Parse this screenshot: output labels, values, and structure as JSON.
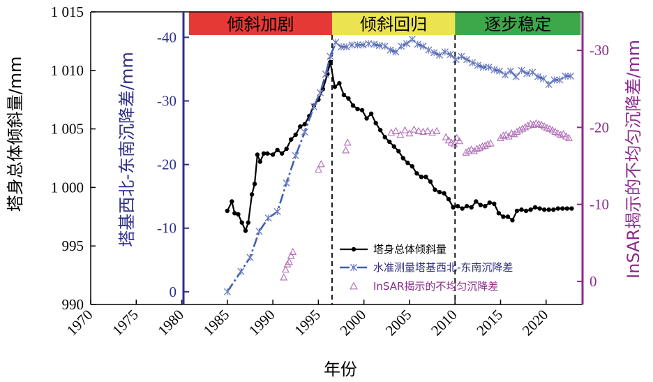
{
  "chart_data": {
    "type": "line",
    "xlabel": "年份",
    "x_ticks": [
      1970,
      1975,
      1980,
      1985,
      1990,
      1995,
      2000,
      2005,
      2010,
      2015,
      2020
    ],
    "xlim": [
      1970,
      2024
    ],
    "axes": {
      "left_outer": {
        "label": "塔身总体倾斜量/mm",
        "ylim": [
          990,
          1015
        ],
        "ticks": [
          990,
          995,
          1000,
          1005,
          1010,
          1015
        ],
        "tick_labels": [
          "990",
          "995",
          "1 000",
          "1 005",
          "1 010",
          "1 015"
        ],
        "color": "#000000"
      },
      "left_inner": {
        "label": "塔基西北-东南沉降差/mm",
        "ylim": [
          2,
          -44
        ],
        "inverted": true,
        "ticks": [
          0,
          -10,
          -20,
          -30,
          -40
        ],
        "tick_labels": [
          "0",
          "-10",
          "-20",
          "-30",
          "-40"
        ],
        "color": "#2e2e8a"
      },
      "right": {
        "label": "InSAR揭示的不均匀沉降差/mm",
        "ylim": [
          3,
          -35
        ],
        "inverted": true,
        "ticks": [
          0,
          -10,
          -20,
          -30
        ],
        "tick_labels": [
          "0",
          "-10",
          "-20",
          "-30"
        ],
        "color": "#8b2a8b"
      }
    },
    "phases": [
      {
        "label": "倾斜加剧",
        "start": 1980.8,
        "end": 1996.5,
        "color": "#e53935"
      },
      {
        "label": "倾斜回归",
        "start": 1996.5,
        "end": 2010,
        "color": "#ece350"
      },
      {
        "label": "逐步稳定",
        "start": 2010,
        "end": 2023.8,
        "color": "#3da84a"
      }
    ],
    "vlines": [
      1996.5,
      2010
    ],
    "series": [
      {
        "name": "塔身总体倾斜量",
        "axis": "left_outer",
        "style": "line-dots",
        "color": "#000000",
        "x": [
          1985.0,
          1985.5,
          1985.8,
          1986.2,
          1986.6,
          1987.0,
          1987.3,
          1987.7,
          1988.0,
          1988.3,
          1988.6,
          1989.0,
          1989.4,
          1990.0,
          1990.5,
          1991.0,
          1991.5,
          1992.0,
          1992.5,
          1993.0,
          1993.5,
          1994.0,
          1994.5,
          1995.0,
          1995.5,
          1996.0,
          1996.3,
          1996.8,
          1997.3,
          1997.8,
          1998.3,
          1998.8,
          1999.3,
          1999.8,
          2000.3,
          2000.8,
          2001.3,
          2001.8,
          2002.3,
          2002.8,
          2003.3,
          2003.8,
          2004.3,
          2004.8,
          2005.3,
          2005.8,
          2006.3,
          2006.8,
          2007.3,
          2007.8,
          2008.3,
          2008.8,
          2009.3,
          2009.8,
          2010.3,
          2010.8,
          2011.3,
          2011.8,
          2012.3,
          2012.8,
          2013.3,
          2013.8,
          2014.3,
          2014.8,
          2015.3,
          2015.8,
          2016.3,
          2016.8,
          2017.3,
          2017.8,
          2018.3,
          2018.8,
          2019.3,
          2019.8,
          2020.3,
          2020.8,
          2021.3,
          2021.8,
          2022.3,
          2022.8
        ],
        "values": [
          998.0,
          998.8,
          997.8,
          997.7,
          997.0,
          996.3,
          997.0,
          999.4,
          1000.3,
          1002.8,
          1002.2,
          1002.9,
          1002.9,
          1002.8,
          1003.2,
          1002.9,
          1003.3,
          1004.1,
          1004.5,
          1005.2,
          1005.4,
          1006.1,
          1007.0,
          1007.5,
          1008.4,
          1009.7,
          1010.7,
          1008.6,
          1008.9,
          1007.9,
          1007.6,
          1007.0,
          1006.7,
          1006.6,
          1005.9,
          1006.3,
          1005.5,
          1004.9,
          1004.3,
          1003.9,
          1003.5,
          1003.1,
          1002.5,
          1002.1,
          1001.8,
          1001.2,
          1000.9,
          1000.9,
          1000.5,
          999.8,
          999.6,
          999.5,
          999.0,
          998.3,
          998.4,
          998.2,
          998.4,
          998.3,
          998.8,
          998.5,
          998.4,
          998.7,
          998.6,
          997.8,
          997.5,
          997.5,
          997.2,
          998.0,
          998.1,
          998.0,
          998.1,
          998.3,
          998.2,
          998.1,
          998.1,
          998.1,
          998.2,
          998.2,
          998.2,
          998.2
        ]
      },
      {
        "name": "水准测量塔基西北-东南沉降差",
        "axis": "left_inner",
        "style": "dashdot-x",
        "color": "#6f7fc2",
        "x": [
          1985,
          1986.5,
          1987.5,
          1988.5,
          1989.5,
          1990.5,
          1991.5,
          1992.5,
          1993.5,
          1994.5,
          1995.2,
          1995.8,
          1996.3,
          1996.9,
          1997.5,
          1998.1,
          1998.7,
          1999.3,
          1999.9,
          2000.5,
          2001.1,
          2001.7,
          2002.3,
          2002.9,
          2003.5,
          2004.1,
          2004.7,
          2005.3,
          2005.9,
          2006.5,
          2007.1,
          2007.7,
          2008.3,
          2008.9,
          2009.5,
          2010.1,
          2010.7,
          2011.3,
          2011.9,
          2012.5,
          2013.1,
          2013.7,
          2014.3,
          2014.9,
          2015.5,
          2016.1,
          2016.7,
          2017.3,
          2017.9,
          2018.5,
          2019.1,
          2019.7,
          2020.3,
          2020.9,
          2021.5,
          2022.1,
          2022.7
        ],
        "values": [
          0,
          -3.2,
          -5.4,
          -9.5,
          -11.6,
          -12.6,
          -17.1,
          -21.4,
          -25.1,
          -29.1,
          -31.3,
          -34.2,
          -37.0,
          -39.2,
          -38.5,
          -38.5,
          -38.8,
          -38.8,
          -38.8,
          -39.0,
          -38.9,
          -38.7,
          -38.6,
          -38.0,
          -37.7,
          -38.6,
          -39.0,
          -39.7,
          -38.9,
          -38.6,
          -38.0,
          -37.6,
          -37.2,
          -37.7,
          -37.3,
          -36.5,
          -37.0,
          -36.5,
          -36.0,
          -35.6,
          -35.3,
          -35.3,
          -34.9,
          -34.7,
          -34.1,
          -34.7,
          -33.8,
          -34.8,
          -34.3,
          -34.5,
          -33.8,
          -33.5,
          -32.6,
          -33.3,
          -33.3,
          -33.9,
          -33.9
        ]
      },
      {
        "name": "InSAR揭示的不均匀沉降差",
        "axis": "right",
        "style": "triangles",
        "color": "#b06fb6",
        "x": [
          1991.2,
          1991.4,
          1991.6,
          1991.8,
          1992.0,
          1992.2,
          1995.0,
          1995.3,
          1998.0,
          1998.2,
          2003.0,
          2003.5,
          2004.0,
          2004.5,
          2005.0,
          2005.5,
          2006.0,
          2006.5,
          2007.0,
          2007.5,
          2008.0,
          2009.0,
          2009.3,
          2009.6,
          2009.9,
          2010.2,
          2010.5,
          2011.2,
          2011.5,
          2011.8,
          2012.1,
          2012.4,
          2012.7,
          2013.0,
          2013.3,
          2013.6,
          2013.9,
          2015.0,
          2015.3,
          2015.6,
          2015.9,
          2016.2,
          2016.5,
          2016.8,
          2017.1,
          2017.4,
          2017.7,
          2018.0,
          2018.3,
          2018.6,
          2018.9,
          2019.2,
          2019.5,
          2019.8,
          2020.1,
          2020.4,
          2020.7,
          2021.0,
          2021.3,
          2021.6,
          2021.9,
          2022.2,
          2022.5
        ],
        "values": [
          -0.5,
          -1.5,
          -2.2,
          -2.5,
          -3.3,
          -3.8,
          -14.5,
          -15.2,
          -17.0,
          -18.0,
          -19.3,
          -19.5,
          -19.0,
          -19.6,
          -19.2,
          -19.7,
          -19.5,
          -19.4,
          -19.5,
          -19.3,
          -19.5,
          -18.7,
          -18.3,
          -18.0,
          -17.8,
          -18.6,
          -18.2,
          -16.7,
          -16.9,
          -17.1,
          -16.9,
          -17.2,
          -17.3,
          -17.5,
          -17.6,
          -17.8,
          -17.9,
          -18.6,
          -18.9,
          -19.0,
          -18.8,
          -19.2,
          -19.1,
          -19.4,
          -19.6,
          -19.8,
          -20.0,
          -20.2,
          -20.4,
          -20.3,
          -20.5,
          -20.4,
          -20.3,
          -20.1,
          -19.9,
          -19.8,
          -19.6,
          -19.4,
          -19.2,
          -19.0,
          -19.1,
          -18.8,
          -18.6
        ]
      }
    ],
    "legend": {
      "placement": "lower-center",
      "entries": [
        "塔身总体倾斜量",
        "水准测量塔基西北-东南沉降差",
        "InSAR揭示的不均匀沉降差"
      ]
    }
  }
}
